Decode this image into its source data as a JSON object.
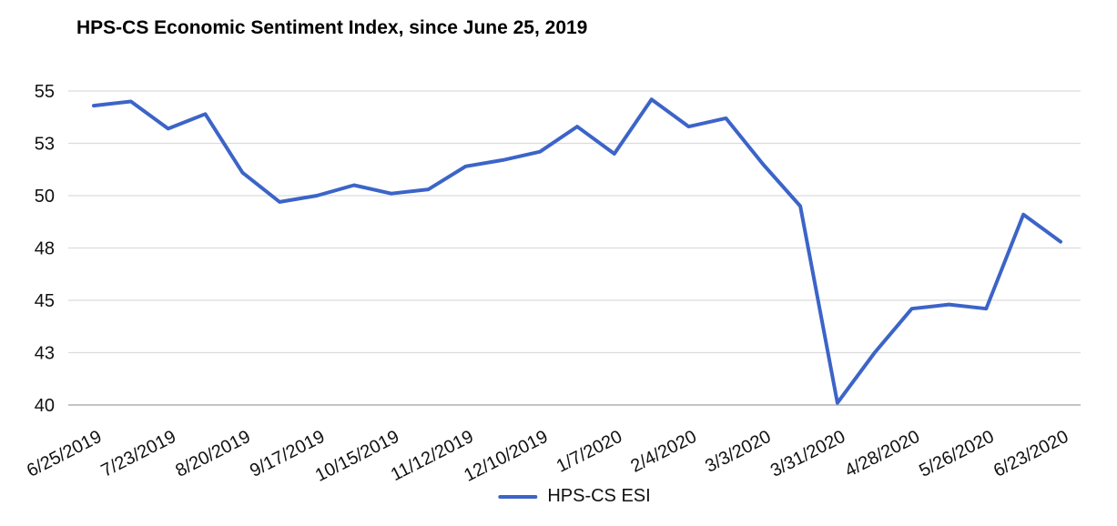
{
  "title": "HPS-CS Economic Sentiment Index, since June 25, 2019",
  "legend": {
    "series_label": "HPS-CS ESI"
  },
  "colors": {
    "line": "#3c64c8",
    "gridline": "#dcdcdc",
    "axis_line": "#b0b0b0",
    "tick_text": "#111111"
  },
  "chart_data": {
    "type": "line",
    "title": "HPS-CS Economic Sentiment Index, since June 25, 2019",
    "xlabel": "",
    "ylabel": "",
    "x": [
      "6/25/2019",
      "7/9/2019",
      "7/23/2019",
      "8/6/2019",
      "8/20/2019",
      "9/3/2019",
      "9/17/2019",
      "10/1/2019",
      "10/15/2019",
      "10/29/2019",
      "11/12/2019",
      "11/26/2019",
      "12/10/2019",
      "12/24/2019",
      "1/7/2020",
      "1/21/2020",
      "2/4/2020",
      "2/18/2020",
      "3/3/2020",
      "3/17/2020",
      "3/31/2020",
      "4/14/2020",
      "4/28/2020",
      "5/12/2020",
      "5/26/2020",
      "6/9/2020",
      "6/23/2020"
    ],
    "series": [
      {
        "name": "HPS-CS ESI",
        "color": "#3c64c8",
        "values": [
          54.3,
          54.5,
          53.2,
          53.9,
          51.1,
          49.7,
          50.0,
          50.5,
          50.1,
          50.3,
          51.4,
          51.7,
          52.1,
          53.3,
          52.0,
          54.6,
          53.3,
          53.7,
          51.5,
          49.5,
          40.1,
          42.5,
          44.6,
          44.8,
          44.6,
          49.1,
          47.8
        ]
      }
    ],
    "ylim": [
      40,
      55
    ],
    "y_gridline_values": [
      55,
      52.5,
      50,
      47.5,
      45,
      42.5,
      40
    ],
    "y_tick_labels": [
      "55",
      "53",
      "50",
      "48",
      "45",
      "43",
      "40"
    ],
    "x_tick_indices": [
      0,
      2,
      4,
      6,
      8,
      10,
      12,
      14,
      16,
      18,
      20,
      22,
      24,
      26
    ],
    "x_tick_labels": [
      "6/25/2019",
      "7/23/2019",
      "8/20/2019",
      "9/17/2019",
      "10/15/2019",
      "11/12/2019",
      "12/10/2019",
      "1/7/2020",
      "2/4/2020",
      "3/3/2020",
      "3/31/2020",
      "4/28/2020",
      "5/26/2020",
      "6/23/2020"
    ],
    "x_tick_rotation_deg": -27,
    "grid": "horizontal",
    "legend_position": "bottom"
  }
}
